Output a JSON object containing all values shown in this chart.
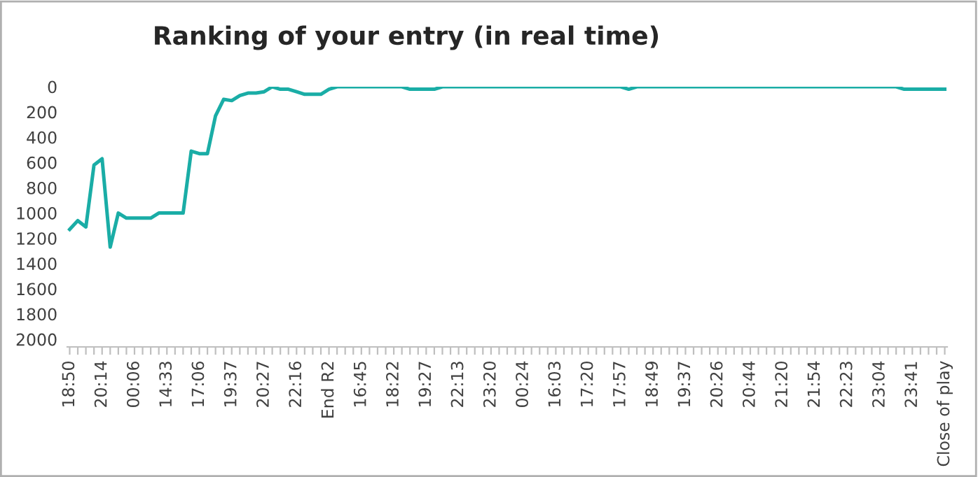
{
  "chart_data": {
    "type": "line",
    "title": "Ranking of your entry (in real time)",
    "categories": [
      "18:50",
      null,
      null,
      null,
      "20:14",
      null,
      null,
      null,
      "00:06",
      null,
      null,
      null,
      "14:33",
      null,
      null,
      null,
      "17:06",
      null,
      null,
      null,
      "19:37",
      null,
      null,
      null,
      "20:27",
      null,
      null,
      null,
      "22:16",
      null,
      null,
      null,
      "End R2",
      null,
      null,
      null,
      "16:45",
      null,
      null,
      null,
      "18:22",
      null,
      null,
      null,
      "19:27",
      null,
      null,
      null,
      "22:13",
      null,
      null,
      null,
      "23:20",
      null,
      null,
      null,
      "00:24",
      null,
      null,
      null,
      "16:03",
      null,
      null,
      null,
      "17:20",
      null,
      null,
      null,
      "17:57",
      null,
      null,
      null,
      "18:49",
      null,
      null,
      null,
      "19:37",
      null,
      null,
      null,
      "20:26",
      null,
      null,
      null,
      "20:44",
      null,
      null,
      null,
      "21:20",
      null,
      null,
      null,
      "21:54",
      null,
      null,
      null,
      "22:23",
      null,
      null,
      null,
      "23:04",
      null,
      null,
      null,
      "23:41",
      null,
      null,
      null,
      "Close of play"
    ],
    "series": [
      {
        "color": "#1aada6",
        "values": [
          1130,
          1060,
          1110,
          620,
          570,
          1270,
          1000,
          1040,
          1040,
          1040,
          1040,
          1000,
          1000,
          1000,
          1000,
          510,
          530,
          530,
          230,
          100,
          110,
          70,
          50,
          50,
          40,
          0,
          20,
          20,
          40,
          60,
          60,
          60,
          20,
          0,
          0,
          0,
          0,
          0,
          0,
          0,
          0,
          0,
          20,
          20,
          20,
          20,
          0,
          0,
          0,
          0,
          0,
          0,
          0,
          0,
          0,
          0,
          0,
          0,
          0,
          0,
          0,
          0,
          0,
          0,
          0,
          0,
          0,
          0,
          0,
          20,
          0,
          0,
          0,
          0,
          0,
          0,
          0,
          0,
          0,
          0,
          0,
          0,
          0,
          0,
          0,
          0,
          0,
          0,
          0,
          0,
          0,
          0,
          0,
          0,
          0,
          0,
          0,
          0,
          0,
          0,
          0,
          0,
          0,
          20,
          20,
          20,
          20,
          20,
          20
        ]
      }
    ],
    "ylim": [
      2060,
      0
    ],
    "yticks": [
      0,
      200,
      400,
      600,
      800,
      1000,
      1200,
      1400,
      1600,
      1800,
      2000
    ],
    "grid": false,
    "marker": "none",
    "line_style": "solid"
  }
}
